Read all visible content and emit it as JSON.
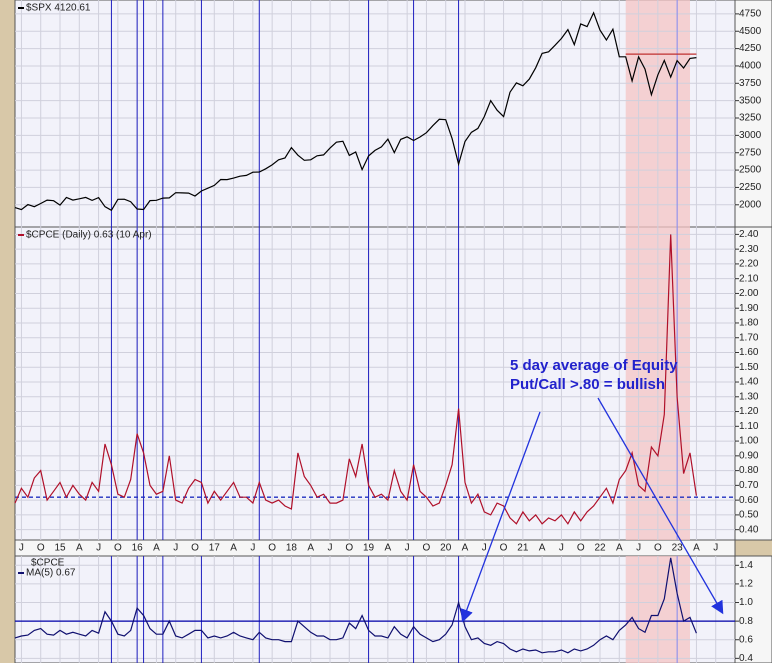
{
  "chart_data": [
    {
      "type": "line",
      "x": [
        "2014-06",
        "2014-07",
        "2014-08",
        "2014-09",
        "2014-10",
        "2014-11",
        "2014-12",
        "2015-01",
        "2015-02",
        "2015-03",
        "2015-04",
        "2015-05",
        "2015-06",
        "2015-07",
        "2015-08",
        "2015-09",
        "2015-10",
        "2015-11",
        "2015-12",
        "2016-01",
        "2016-02",
        "2016-03",
        "2016-04",
        "2016-05",
        "2016-06",
        "2016-07",
        "2016-08",
        "2016-09",
        "2016-10",
        "2016-11",
        "2016-12",
        "2017-01",
        "2017-02",
        "2017-03",
        "2017-04",
        "2017-05",
        "2017-06",
        "2017-07",
        "2017-08",
        "2017-09",
        "2017-10",
        "2017-11",
        "2017-12",
        "2018-01",
        "2018-02",
        "2018-03",
        "2018-04",
        "2018-05",
        "2018-06",
        "2018-07",
        "2018-08",
        "2018-09",
        "2018-10",
        "2018-11",
        "2018-12",
        "2019-01",
        "2019-02",
        "2019-03",
        "2019-04",
        "2019-05",
        "2019-06",
        "2019-07",
        "2019-08",
        "2019-09",
        "2019-10",
        "2019-11",
        "2019-12",
        "2020-01",
        "2020-02",
        "2020-03",
        "2020-04",
        "2020-05",
        "2020-06",
        "2020-07",
        "2020-08",
        "2020-09",
        "2020-10",
        "2020-11",
        "2020-12",
        "2021-01",
        "2021-02",
        "2021-03",
        "2021-04",
        "2021-05",
        "2021-06",
        "2021-07",
        "2021-08",
        "2021-09",
        "2021-10",
        "2021-11",
        "2021-12",
        "2022-01",
        "2022-02",
        "2022-03",
        "2022-04",
        "2022-05",
        "2022-06",
        "2022-07",
        "2022-08",
        "2022-09",
        "2022-10",
        "2022-11",
        "2022-12",
        "2023-01",
        "2023-02",
        "2023-03",
        "2023-04"
      ],
      "series": [
        {
          "name": "$SPX 4120.61",
          "color": "#000000",
          "values": [
            1960,
            1930,
            2003,
            1972,
            2018,
            2067,
            2059,
            1995,
            2105,
            2068,
            2086,
            2107,
            2063,
            2104,
            1972,
            1920,
            2079,
            2080,
            2044,
            1940,
            1932,
            2060,
            2065,
            2097,
            2099,
            2174,
            2171,
            2168,
            2126,
            2199,
            2239,
            2279,
            2364,
            2363,
            2384,
            2412,
            2423,
            2470,
            2472,
            2519,
            2575,
            2648,
            2674,
            2824,
            2714,
            2641,
            2648,
            2705,
            2718,
            2816,
            2902,
            2914,
            2711,
            2760,
            2507,
            2704,
            2784,
            2834,
            2946,
            2752,
            2942,
            2980,
            2926,
            2977,
            3038,
            3141,
            3231,
            3226,
            2954,
            2585,
            2912,
            3044,
            3100,
            3271,
            3500,
            3363,
            3270,
            3622,
            3756,
            3714,
            3811,
            3973,
            4181,
            4204,
            4298,
            4395,
            4523,
            4308,
            4605,
            4567,
            4766,
            4516,
            4374,
            4530,
            4132,
            4132,
            3785,
            4130,
            3955,
            3586,
            3872,
            4080,
            3840,
            4077,
            3970,
            4109,
            4120
          ]
        }
      ],
      "xlim": [
        "2014-06",
        "2023-10"
      ],
      "ylim": [
        1680,
        4950
      ],
      "yticks": [
        2000,
        2250,
        2500,
        2750,
        3000,
        3250,
        3500,
        3750,
        4000,
        4250,
        4500,
        4750
      ],
      "reference_line": {
        "value": 4170,
        "start": "2022-05",
        "end": "2023-04",
        "color": "#c03030"
      },
      "signal_dates": [
        "2015-09",
        "2016-01",
        "2016-02",
        "2016-05",
        "2016-11",
        "2017-08",
        "2019-01",
        "2019-08",
        "2020-03",
        "2023-01"
      ],
      "highlight": {
        "start": "2022-05",
        "end": "2023-03",
        "color": "#f4c4c4"
      }
    },
    {
      "type": "line",
      "x": [
        "2014-06",
        "2014-07",
        "2014-08",
        "2014-09",
        "2014-10",
        "2014-11",
        "2014-12",
        "2015-01",
        "2015-02",
        "2015-03",
        "2015-04",
        "2015-05",
        "2015-06",
        "2015-07",
        "2015-08",
        "2015-09",
        "2015-10",
        "2015-11",
        "2015-12",
        "2016-01",
        "2016-02",
        "2016-03",
        "2016-04",
        "2016-05",
        "2016-06",
        "2016-07",
        "2016-08",
        "2016-09",
        "2016-10",
        "2016-11",
        "2016-12",
        "2017-01",
        "2017-02",
        "2017-03",
        "2017-04",
        "2017-05",
        "2017-06",
        "2017-07",
        "2017-08",
        "2017-09",
        "2017-10",
        "2017-11",
        "2017-12",
        "2018-01",
        "2018-02",
        "2018-03",
        "2018-04",
        "2018-05",
        "2018-06",
        "2018-07",
        "2018-08",
        "2018-09",
        "2018-10",
        "2018-11",
        "2018-12",
        "2019-01",
        "2019-02",
        "2019-03",
        "2019-04",
        "2019-05",
        "2019-06",
        "2019-07",
        "2019-08",
        "2019-09",
        "2019-10",
        "2019-11",
        "2019-12",
        "2020-01",
        "2020-02",
        "2020-03",
        "2020-04",
        "2020-05",
        "2020-06",
        "2020-07",
        "2020-08",
        "2020-09",
        "2020-10",
        "2020-11",
        "2020-12",
        "2021-01",
        "2021-02",
        "2021-03",
        "2021-04",
        "2021-05",
        "2021-06",
        "2021-07",
        "2021-08",
        "2021-09",
        "2021-10",
        "2021-11",
        "2021-12",
        "2022-01",
        "2022-02",
        "2022-03",
        "2022-04",
        "2022-05",
        "2022-06",
        "2022-07",
        "2022-08",
        "2022-09",
        "2022-10",
        "2022-11",
        "2022-12",
        "2023-01",
        "2023-02",
        "2023-03",
        "2023-04"
      ],
      "series": [
        {
          "name": "$CPCE (Daily) 0.63 (10 Apr)",
          "color": "#b0102a",
          "values": [
            0.58,
            0.68,
            0.62,
            0.75,
            0.8,
            0.6,
            0.66,
            0.72,
            0.62,
            0.7,
            0.64,
            0.6,
            0.72,
            0.66,
            0.98,
            0.84,
            0.64,
            0.62,
            0.74,
            1.05,
            0.92,
            0.7,
            0.64,
            0.66,
            0.9,
            0.6,
            0.58,
            0.68,
            0.74,
            0.72,
            0.58,
            0.66,
            0.6,
            0.66,
            0.72,
            0.62,
            0.62,
            0.58,
            0.72,
            0.6,
            0.58,
            0.6,
            0.56,
            0.54,
            0.92,
            0.76,
            0.7,
            0.62,
            0.64,
            0.58,
            0.58,
            0.6,
            0.88,
            0.76,
            0.98,
            0.7,
            0.62,
            0.64,
            0.6,
            0.8,
            0.66,
            0.6,
            0.84,
            0.66,
            0.62,
            0.56,
            0.58,
            0.7,
            0.84,
            1.22,
            0.72,
            0.58,
            0.64,
            0.52,
            0.5,
            0.58,
            0.56,
            0.48,
            0.44,
            0.52,
            0.46,
            0.5,
            0.44,
            0.48,
            0.46,
            0.5,
            0.44,
            0.52,
            0.46,
            0.52,
            0.56,
            0.62,
            0.68,
            0.58,
            0.74,
            0.8,
            0.92,
            0.7,
            0.66,
            0.96,
            0.9,
            1.18,
            2.4,
            1.3,
            0.78,
            0.92,
            0.63
          ]
        }
      ],
      "xlim": [
        "2014-06",
        "2023-10"
      ],
      "ylim": [
        0.33,
        2.45
      ],
      "yticks": [
        {
          "value": 0.4,
          "label": "0.40"
        },
        {
          "value": 0.5,
          "label": "0.50"
        },
        {
          "value": 0.6,
          "label": "0.60"
        },
        {
          "value": 0.7,
          "label": "0.70"
        },
        {
          "value": 0.8,
          "label": "0.80"
        },
        {
          "value": 0.9,
          "label": "0.90"
        },
        {
          "value": 1.0,
          "label": "1.00"
        },
        {
          "value": 1.1,
          "label": "1.10"
        },
        {
          "value": 1.2,
          "label": "1.20"
        },
        {
          "value": 1.3,
          "label": "1.30"
        },
        {
          "value": 1.4,
          "label": "1.40"
        },
        {
          "value": 1.5,
          "label": "1.50"
        },
        {
          "value": 1.6,
          "label": "1.60"
        },
        {
          "value": 1.7,
          "label": "1.70"
        },
        {
          "value": 1.8,
          "label": "1.80"
        },
        {
          "value": 1.9,
          "label": "1.90"
        },
        {
          "value": 2.0,
          "label": "2.00"
        },
        {
          "value": 2.1,
          "label": "2.10"
        },
        {
          "value": 2.2,
          "label": "2.20"
        },
        {
          "value": 2.3,
          "label": "2.30"
        },
        {
          "value": 2.4,
          "label": "2.40"
        }
      ],
      "xticks": [
        {
          "value": "2014-07",
          "label": "J"
        },
        {
          "value": "2014-10",
          "label": "O"
        },
        {
          "value": "2015-01",
          "label": "15"
        },
        {
          "value": "2015-04",
          "label": "A"
        },
        {
          "value": "2015-07",
          "label": "J"
        },
        {
          "value": "2015-10",
          "label": "O"
        },
        {
          "value": "2016-01",
          "label": "16"
        },
        {
          "value": "2016-04",
          "label": "A"
        },
        {
          "value": "2016-07",
          "label": "J"
        },
        {
          "value": "2016-10",
          "label": "O"
        },
        {
          "value": "2017-01",
          "label": "17"
        },
        {
          "value": "2017-04",
          "label": "A"
        },
        {
          "value": "2017-07",
          "label": "J"
        },
        {
          "value": "2017-10",
          "label": "O"
        },
        {
          "value": "2018-01",
          "label": "18"
        },
        {
          "value": "2018-04",
          "label": "A"
        },
        {
          "value": "2018-07",
          "label": "J"
        },
        {
          "value": "2018-10",
          "label": "O"
        },
        {
          "value": "2019-01",
          "label": "19"
        },
        {
          "value": "2019-04",
          "label": "A"
        },
        {
          "value": "2019-07",
          "label": "J"
        },
        {
          "value": "2019-10",
          "label": "O"
        },
        {
          "value": "2020-01",
          "label": "20"
        },
        {
          "value": "2020-04",
          "label": "A"
        },
        {
          "value": "2020-07",
          "label": "J"
        },
        {
          "value": "2020-10",
          "label": "O"
        },
        {
          "value": "2021-01",
          "label": "21"
        },
        {
          "value": "2021-04",
          "label": "A"
        },
        {
          "value": "2021-07",
          "label": "J"
        },
        {
          "value": "2021-10",
          "label": "O"
        },
        {
          "value": "2022-01",
          "label": "22"
        },
        {
          "value": "2022-04",
          "label": "A"
        },
        {
          "value": "2022-07",
          "label": "J"
        },
        {
          "value": "2022-10",
          "label": "O"
        },
        {
          "value": "2023-01",
          "label": "23"
        },
        {
          "value": "2023-04",
          "label": "A"
        },
        {
          "value": "2023-07",
          "label": "J"
        }
      ],
      "reference_line": {
        "value": 0.62,
        "color": "#2030c0",
        "dashed": true
      },
      "annotation": [
        "5 day average of Equity",
        "Put/Call >.80 = bullish"
      ]
    },
    {
      "type": "line",
      "title": "$CPCE",
      "x": [
        "2014-06",
        "2014-07",
        "2014-08",
        "2014-09",
        "2014-10",
        "2014-11",
        "2014-12",
        "2015-01",
        "2015-02",
        "2015-03",
        "2015-04",
        "2015-05",
        "2015-06",
        "2015-07",
        "2015-08",
        "2015-09",
        "2015-10",
        "2015-11",
        "2015-12",
        "2016-01",
        "2016-02",
        "2016-03",
        "2016-04",
        "2016-05",
        "2016-06",
        "2016-07",
        "2016-08",
        "2016-09",
        "2016-10",
        "2016-11",
        "2016-12",
        "2017-01",
        "2017-02",
        "2017-03",
        "2017-04",
        "2017-05",
        "2017-06",
        "2017-07",
        "2017-08",
        "2017-09",
        "2017-10",
        "2017-11",
        "2017-12",
        "2018-01",
        "2018-02",
        "2018-03",
        "2018-04",
        "2018-05",
        "2018-06",
        "2018-07",
        "2018-08",
        "2018-09",
        "2018-10",
        "2018-11",
        "2018-12",
        "2019-01",
        "2019-02",
        "2019-03",
        "2019-04",
        "2019-05",
        "2019-06",
        "2019-07",
        "2019-08",
        "2019-09",
        "2019-10",
        "2019-11",
        "2019-12",
        "2020-01",
        "2020-02",
        "2020-03",
        "2020-04",
        "2020-05",
        "2020-06",
        "2020-07",
        "2020-08",
        "2020-09",
        "2020-10",
        "2020-11",
        "2020-12",
        "2021-01",
        "2021-02",
        "2021-03",
        "2021-04",
        "2021-05",
        "2021-06",
        "2021-07",
        "2021-08",
        "2021-09",
        "2021-10",
        "2021-11",
        "2021-12",
        "2022-01",
        "2022-02",
        "2022-03",
        "2022-04",
        "2022-05",
        "2022-06",
        "2022-07",
        "2022-08",
        "2022-09",
        "2022-10",
        "2022-11",
        "2022-12",
        "2023-01",
        "2023-02",
        "2023-03",
        "2023-04"
      ],
      "series": [
        {
          "name": "MA(5) 0.67",
          "color": "#101070",
          "values": [
            0.62,
            0.64,
            0.65,
            0.7,
            0.72,
            0.66,
            0.65,
            0.7,
            0.66,
            0.68,
            0.66,
            0.64,
            0.7,
            0.67,
            0.9,
            0.8,
            0.66,
            0.64,
            0.7,
            0.94,
            0.86,
            0.72,
            0.66,
            0.66,
            0.8,
            0.64,
            0.62,
            0.66,
            0.7,
            0.7,
            0.62,
            0.64,
            0.62,
            0.64,
            0.68,
            0.64,
            0.62,
            0.6,
            0.68,
            0.62,
            0.6,
            0.6,
            0.58,
            0.58,
            0.8,
            0.74,
            0.68,
            0.64,
            0.64,
            0.6,
            0.6,
            0.62,
            0.78,
            0.72,
            0.86,
            0.7,
            0.64,
            0.64,
            0.62,
            0.74,
            0.66,
            0.62,
            0.74,
            0.66,
            0.62,
            0.58,
            0.6,
            0.66,
            0.76,
            1.0,
            0.74,
            0.6,
            0.62,
            0.56,
            0.54,
            0.58,
            0.56,
            0.5,
            0.47,
            0.5,
            0.48,
            0.49,
            0.46,
            0.47,
            0.47,
            0.49,
            0.46,
            0.5,
            0.48,
            0.5,
            0.54,
            0.6,
            0.64,
            0.6,
            0.7,
            0.76,
            0.84,
            0.72,
            0.68,
            0.86,
            0.86,
            1.04,
            1.48,
            1.1,
            0.8,
            0.84,
            0.67
          ]
        }
      ],
      "xlim": [
        "2014-06",
        "2023-10"
      ],
      "ylim": [
        0.35,
        1.5
      ],
      "yticks": [
        0.4,
        0.6,
        0.8,
        {
          "value": 1.0,
          "label": "1.0"
        },
        1.2,
        1.4
      ],
      "reference_line": {
        "value": 0.8,
        "color": "#0000aa"
      }
    }
  ]
}
